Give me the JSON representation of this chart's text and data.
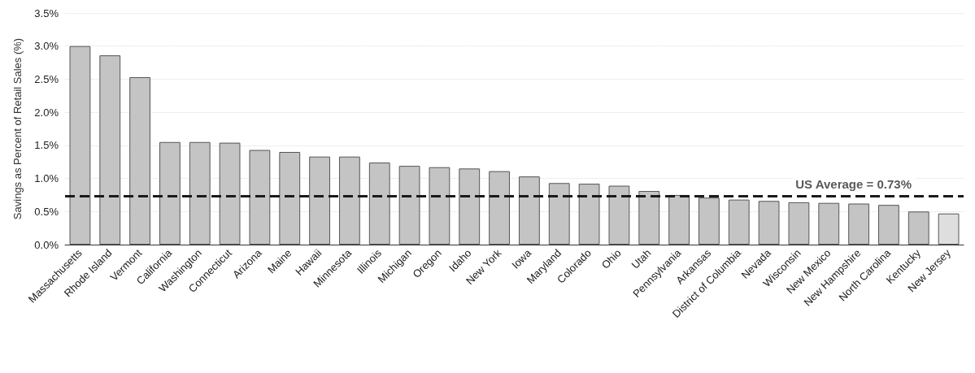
{
  "chart_data": {
    "type": "bar",
    "ylabel": "Savings as Percent of Retail Sales (%)",
    "categories": [
      "Massachusetts",
      "Rhode Island",
      "Vermont",
      "California",
      "Washington",
      "Connecticut",
      "Arizona",
      "Maine",
      "Hawaii",
      "Minnesota",
      "Illinois",
      "Michigan",
      "Oregon",
      "Idaho",
      "New York",
      "Iowa",
      "Maryland",
      "Colorado",
      "Ohio",
      "Utah",
      "Pennsylvania",
      "Arkansas",
      "District of Columbia",
      "Nevada",
      "Wisconsin",
      "New Mexico",
      "New Hampshire",
      "North Carolina",
      "Kentucky",
      "New Jersey"
    ],
    "values": [
      3.0,
      2.86,
      2.53,
      1.55,
      1.55,
      1.54,
      1.43,
      1.4,
      1.33,
      1.33,
      1.24,
      1.19,
      1.17,
      1.15,
      1.11,
      1.03,
      0.93,
      0.92,
      0.89,
      0.81,
      0.75,
      0.71,
      0.68,
      0.66,
      0.64,
      0.63,
      0.62,
      0.6,
      0.5,
      0.47
    ],
    "colors": [
      "#c4c4c4",
      "#c4c4c4",
      "#c4c4c4",
      "#c4c4c4",
      "#c4c4c4",
      "#c4c4c4",
      "#c4c4c4",
      "#c4c4c4",
      "#c4c4c4",
      "#c4c4c4",
      "#c4c4c4",
      "#c4c4c4",
      "#c4c4c4",
      "#c4c4c4",
      "#c4c4c4",
      "#c4c4c4",
      "#c4c4c4",
      "#c4c4c4",
      "#c4c4c4",
      "#c4c4c4",
      "#c4c4c4",
      "#c4c4c4",
      "#c4c4c4",
      "#c4c4c4",
      "#c4c4c4",
      "#c4c4c4",
      "#c4c4c4",
      "#c4c4c4",
      "#c4c4c4",
      "#dedede"
    ],
    "ylim": [
      0,
      3.5
    ],
    "yticks": [
      {
        "value": 0,
        "label": "0.0%"
      },
      {
        "value": 0.5,
        "label": "0.5%"
      },
      {
        "value": 1,
        "label": "1.0%"
      },
      {
        "value": 1.5,
        "label": "1.5%"
      },
      {
        "value": 2,
        "label": "2.0%"
      },
      {
        "value": 2.5,
        "label": "2.5%"
      },
      {
        "value": 3,
        "label": "3.0%"
      },
      {
        "value": 3.5,
        "label": "3.5%"
      }
    ],
    "ref_lines": [
      {
        "axis": "y",
        "value": 0.73,
        "label": "US Average = 0.73%",
        "color": "#1a1a1a",
        "line_style": "dashed"
      }
    ],
    "grid": "y"
  }
}
